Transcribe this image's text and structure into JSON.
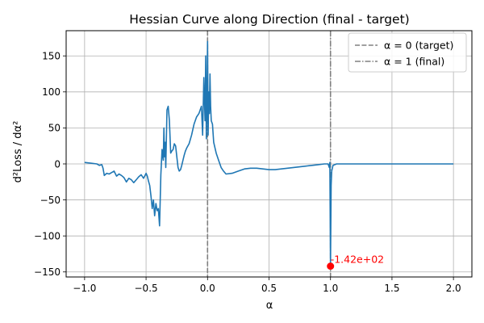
{
  "chart_data": {
    "type": "line",
    "title": "Hessian Curve along Direction (final - target)",
    "xlabel": "α",
    "ylabel": "d²Loss / dα²",
    "xlim": [
      -1.15,
      2.15
    ],
    "ylim": [
      -157,
      185
    ],
    "xticks": [
      -1.0,
      -0.5,
      0.0,
      0.5,
      1.0,
      1.5,
      2.0
    ],
    "xtick_labels": [
      "−1.0",
      "−0.5",
      "0.0",
      "0.5",
      "1.0",
      "1.5",
      "2.0"
    ],
    "yticks": [
      -150,
      -100,
      -50,
      0,
      50,
      100,
      150
    ],
    "ytick_labels": [
      "−150",
      "−100",
      "−50",
      "0",
      "50",
      "100",
      "150"
    ],
    "grid": true,
    "legend_position": "top-right",
    "colors": {
      "series": "#1f77b4",
      "ref_line": "#808080",
      "annotation": "#ff0000"
    },
    "series": [
      {
        "name": "",
        "x": [
          -1.0,
          -0.95,
          -0.9,
          -0.88,
          -0.86,
          -0.85,
          -0.84,
          -0.82,
          -0.8,
          -0.78,
          -0.76,
          -0.74,
          -0.72,
          -0.7,
          -0.68,
          -0.66,
          -0.64,
          -0.62,
          -0.6,
          -0.58,
          -0.56,
          -0.54,
          -0.52,
          -0.5,
          -0.49,
          -0.48,
          -0.47,
          -0.46,
          -0.45,
          -0.44,
          -0.43,
          -0.42,
          -0.41,
          -0.4,
          -0.39,
          -0.38,
          -0.37,
          -0.36,
          -0.355,
          -0.35,
          -0.345,
          -0.34,
          -0.33,
          -0.32,
          -0.31,
          -0.3,
          -0.29,
          -0.28,
          -0.27,
          -0.26,
          -0.25,
          -0.24,
          -0.23,
          -0.22,
          -0.21,
          -0.2,
          -0.19,
          -0.18,
          -0.17,
          -0.15,
          -0.13,
          -0.11,
          -0.09,
          -0.07,
          -0.05,
          -0.04,
          -0.03,
          -0.02,
          -0.015,
          -0.01,
          -0.005,
          0.0,
          0.005,
          0.01,
          0.015,
          0.02,
          0.025,
          0.03,
          0.04,
          0.05,
          0.07,
          0.09,
          0.11,
          0.13,
          0.15,
          0.2,
          0.25,
          0.3,
          0.35,
          0.4,
          0.45,
          0.5,
          0.55,
          0.6,
          0.65,
          0.7,
          0.75,
          0.8,
          0.85,
          0.9,
          0.95,
          0.98,
          0.99,
          0.995,
          1.0,
          1.005,
          1.01,
          1.02,
          1.05,
          1.1,
          1.2,
          1.4,
          1.6,
          1.8,
          2.0
        ],
        "y": [
          2,
          1,
          0,
          -2,
          -1,
          -6,
          -16,
          -13,
          -14,
          -12,
          -10,
          -17,
          -14,
          -16,
          -19,
          -25,
          -20,
          -22,
          -26,
          -22,
          -18,
          -15,
          -20,
          -13,
          -17,
          -24,
          -30,
          -45,
          -62,
          -50,
          -72,
          -55,
          -65,
          -62,
          -86,
          -15,
          20,
          5,
          50,
          10,
          30,
          -5,
          75,
          80,
          60,
          15,
          18,
          20,
          28,
          25,
          10,
          -5,
          -10,
          -8,
          -2,
          5,
          12,
          18,
          22,
          28,
          40,
          55,
          65,
          70,
          80,
          40,
          120,
          60,
          150,
          35,
          80,
          170,
          40,
          100,
          70,
          125,
          80,
          60,
          55,
          30,
          15,
          5,
          -5,
          -10,
          -14,
          -13,
          -10,
          -7,
          -6,
          -6,
          -7,
          -8,
          -8,
          -7,
          -6,
          -5,
          -4,
          -3,
          -2,
          -1,
          0,
          0,
          -5,
          2,
          -142,
          -30,
          -10,
          -2,
          0,
          0,
          0,
          0,
          0,
          0,
          0
        ]
      }
    ],
    "reference_lines": [
      {
        "x": 0,
        "label": "α = 0 (target)",
        "style": "dashed"
      },
      {
        "x": 1,
        "label": "α = 1 (final)",
        "style": "dashdot"
      }
    ],
    "annotations": [
      {
        "x": 1.0,
        "y": -142,
        "text": "-1.42e+02"
      }
    ]
  }
}
